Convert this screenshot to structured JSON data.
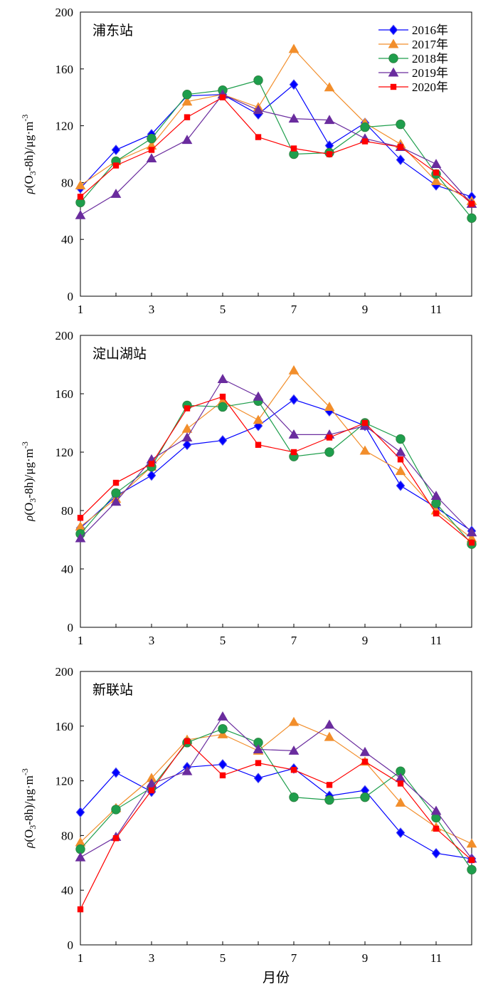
{
  "chart_data": [
    {
      "type": "line",
      "title": "浦东站",
      "ylabel": "ρ(O3-8h)/μg·m-3",
      "xlabel": "",
      "ylim": [
        0,
        200
      ],
      "yticks": [
        0,
        40,
        80,
        120,
        160,
        200
      ],
      "xlim": [
        1,
        12
      ],
      "xticks": [
        1,
        3,
        5,
        7,
        9,
        11
      ],
      "x": [
        1,
        2,
        3,
        4,
        5,
        6,
        7,
        8,
        9,
        10,
        11,
        12
      ],
      "legend": "top-right",
      "series": [
        {
          "name": "2016年",
          "color": "#0000ff",
          "marker": "diamond",
          "values": [
            76,
            103,
            114,
            141,
            142,
            128,
            149,
            106,
            122,
            96,
            78,
            70
          ]
        },
        {
          "name": "2017年",
          "color": "#f28e2b",
          "marker": "triangle",
          "values": [
            78,
            95,
            106,
            137,
            142,
            133,
            174,
            147,
            122,
            107,
            81,
            67
          ]
        },
        {
          "name": "2018年",
          "color": "#1e9e4c",
          "marker": "circle",
          "values": [
            66,
            95,
            111,
            142,
            145,
            152,
            100,
            101,
            119,
            121,
            86,
            55
          ]
        },
        {
          "name": "2019年",
          "color": "#6a2c9e",
          "marker": "triangle",
          "values": [
            57,
            72,
            97,
            110,
            142,
            131,
            125,
            124,
            111,
            105,
            93,
            65
          ]
        },
        {
          "name": "2020年",
          "color": "#ff0000",
          "marker": "square",
          "values": [
            70,
            92,
            103,
            126,
            140,
            112,
            104,
            100,
            109,
            105,
            87,
            65
          ]
        }
      ]
    },
    {
      "type": "line",
      "title": "淀山湖站",
      "ylabel": "ρ(O3-8h)/μg·m-3",
      "xlabel": "",
      "ylim": [
        0,
        200
      ],
      "yticks": [
        0,
        40,
        80,
        120,
        160,
        200
      ],
      "xlim": [
        1,
        12
      ],
      "xticks": [
        1,
        3,
        5,
        7,
        9,
        11
      ],
      "x": [
        1,
        2,
        3,
        4,
        5,
        6,
        7,
        8,
        9,
        10,
        11,
        12
      ],
      "series": [
        {
          "name": "2016年",
          "color": "#0000ff",
          "marker": "diamond",
          "values": [
            68,
            90,
            104,
            125,
            128,
            138,
            156,
            148,
            138,
            97,
            82,
            66
          ]
        },
        {
          "name": "2017年",
          "color": "#f28e2b",
          "marker": "triangle",
          "values": [
            69,
            88,
            110,
            136,
            155,
            142,
            176,
            151,
            121,
            107,
            80,
            61
          ]
        },
        {
          "name": "2018年",
          "color": "#1e9e4c",
          "marker": "circle",
          "values": [
            64,
            92,
            110,
            152,
            151,
            155,
            117,
            120,
            140,
            129,
            85,
            57
          ]
        },
        {
          "name": "2019年",
          "color": "#6a2c9e",
          "marker": "triangle",
          "values": [
            61,
            86,
            115,
            130,
            170,
            158,
            132,
            132,
            138,
            120,
            90,
            65
          ]
        },
        {
          "name": "2020年",
          "color": "#ff0000",
          "marker": "square",
          "values": [
            75,
            99,
            112,
            150,
            158,
            125,
            120,
            130,
            140,
            115,
            78,
            58
          ]
        }
      ]
    },
    {
      "type": "line",
      "title": "新联站",
      "ylabel": "ρ(O3-8h)/μg·m-3",
      "xlabel": "月份",
      "ylim": [
        0,
        200
      ],
      "yticks": [
        0,
        40,
        80,
        120,
        160,
        200
      ],
      "xlim": [
        1,
        12
      ],
      "xticks": [
        1,
        3,
        5,
        7,
        9,
        11
      ],
      "x": [
        1,
        2,
        3,
        4,
        5,
        6,
        7,
        8,
        9,
        10,
        11,
        12
      ],
      "series": [
        {
          "name": "2016年",
          "color": "#0000ff",
          "marker": "diamond",
          "values": [
            97,
            126,
            112,
            130,
            132,
            122,
            129,
            109,
            113,
            82,
            67,
            63
          ]
        },
        {
          "name": "2017年",
          "color": "#f28e2b",
          "marker": "triangle",
          "values": [
            75,
            100,
            122,
            150,
            154,
            142,
            163,
            152,
            134,
            104,
            86,
            74
          ]
        },
        {
          "name": "2018年",
          "color": "#1e9e4c",
          "marker": "circle",
          "values": [
            70,
            99,
            115,
            148,
            158,
            148,
            108,
            106,
            108,
            127,
            93,
            55
          ]
        },
        {
          "name": "2019年",
          "color": "#6a2c9e",
          "marker": "triangle",
          "values": [
            64,
            79,
            118,
            127,
            167,
            143,
            142,
            161,
            141,
            122,
            98,
            63
          ]
        },
        {
          "name": "2020年",
          "color": "#ff0000",
          "marker": "square",
          "values": [
            26,
            78,
            113,
            149,
            124,
            133,
            128,
            117,
            134,
            118,
            85,
            62
          ]
        }
      ]
    }
  ]
}
